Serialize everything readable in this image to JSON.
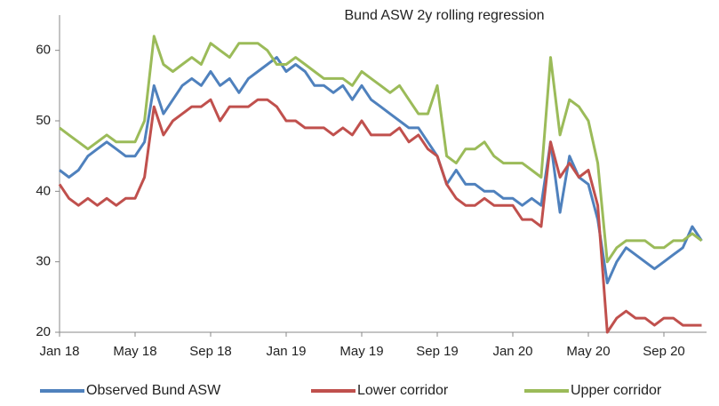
{
  "chart_data": {
    "type": "line",
    "title": "Bund ASW 2y rolling regression",
    "categories": [
      "Jan 18",
      null,
      null,
      null,
      null,
      null,
      null,
      null,
      "May 18",
      null,
      null,
      null,
      null,
      null,
      null,
      null,
      "Sep 18",
      null,
      null,
      null,
      null,
      null,
      null,
      null,
      "Jan 19",
      null,
      null,
      null,
      null,
      null,
      null,
      null,
      "May 19",
      null,
      null,
      null,
      null,
      null,
      null,
      null,
      "Sep 19",
      null,
      null,
      null,
      null,
      null,
      null,
      null,
      "Jan 20",
      null,
      null,
      null,
      null,
      null,
      null,
      null,
      "May 20",
      null,
      null,
      null,
      null,
      null,
      null,
      null,
      "Sep 20",
      null,
      null,
      null,
      null
    ],
    "series": [
      {
        "name": "Observed Bund ASW",
        "color": "#4f81bd",
        "values": [
          43,
          42,
          43,
          45,
          46,
          47,
          46,
          45,
          45,
          47,
          55,
          51,
          53,
          55,
          56,
          55,
          57,
          55,
          56,
          54,
          56,
          57,
          58,
          59,
          57,
          58,
          57,
          55,
          55,
          54,
          55,
          53,
          55,
          53,
          52,
          51,
          50,
          49,
          49,
          47,
          45,
          41,
          43,
          41,
          41,
          40,
          40,
          39,
          39,
          38,
          39,
          38,
          47,
          37,
          45,
          42,
          41,
          36,
          27,
          30,
          32,
          31,
          30,
          29,
          30,
          31,
          32,
          35,
          33
        ]
      },
      {
        "name": "Lower corridor",
        "color": "#c0504d",
        "values": [
          41,
          39,
          38,
          39,
          38,
          39,
          38,
          39,
          39,
          42,
          52,
          48,
          50,
          51,
          52,
          52,
          53,
          50,
          52,
          52,
          52,
          53,
          53,
          52,
          50,
          50,
          49,
          49,
          49,
          48,
          49,
          48,
          50,
          48,
          48,
          48,
          49,
          47,
          48,
          46,
          45,
          41,
          39,
          38,
          38,
          39,
          38,
          38,
          38,
          36,
          36,
          35,
          47,
          42,
          44,
          42,
          43,
          38,
          20,
          22,
          23,
          22,
          22,
          21,
          22,
          22,
          21,
          21,
          21
        ]
      },
      {
        "name": "Upper corridor",
        "color": "#9bbb59",
        "values": [
          49,
          48,
          47,
          46,
          47,
          48,
          47,
          47,
          47,
          50,
          62,
          58,
          57,
          58,
          59,
          58,
          61,
          60,
          59,
          61,
          61,
          61,
          60,
          58,
          58,
          59,
          58,
          57,
          56,
          56,
          56,
          55,
          57,
          56,
          55,
          54,
          55,
          53,
          51,
          51,
          55,
          45,
          44,
          46,
          46,
          47,
          45,
          44,
          44,
          44,
          43,
          42,
          59,
          48,
          53,
          52,
          50,
          44,
          30,
          32,
          33,
          33,
          33,
          32,
          32,
          33,
          33,
          34,
          33
        ]
      }
    ],
    "ylim": [
      20,
      65
    ],
    "yticks": [
      20,
      30,
      40,
      50,
      60
    ],
    "grid": false,
    "legend": "bottom"
  }
}
